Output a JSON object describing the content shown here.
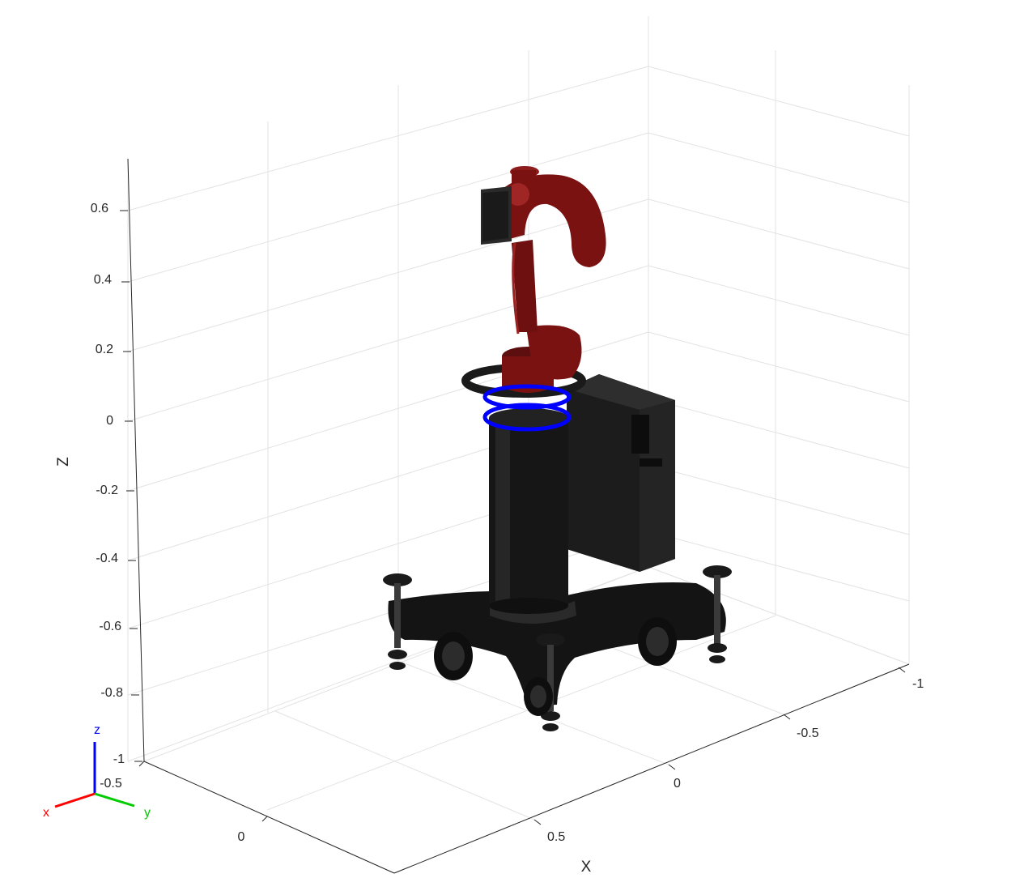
{
  "axes": {
    "z_label": "Z",
    "x_label": "X",
    "z_ticks": [
      "0.6",
      "0.4",
      "0.2",
      "0",
      "-0.2",
      "-0.4",
      "-0.6",
      "-0.8",
      "-1"
    ],
    "x_ticks": [
      "0.5",
      "0",
      "-0.5",
      "-1"
    ],
    "y_ticks": [
      "-0.5",
      "0"
    ],
    "grid": true
  },
  "triad": {
    "x": "x",
    "y": "y",
    "z": "z"
  },
  "colors": {
    "robot_arm": "#7a1212",
    "robot_base": "#141414",
    "highlight_ring": "#0000ff",
    "triad_x": "#ff0000",
    "triad_y": "#00cc00",
    "triad_z": "#0000ff",
    "grid": "#e3e3e3",
    "axis": "#262626"
  },
  "scene": {
    "object": "robot-arm-on-pedestal",
    "selection": "base-ring"
  }
}
